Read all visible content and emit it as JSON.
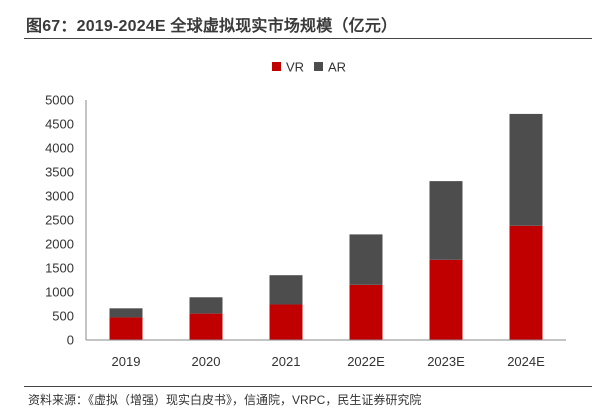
{
  "figure": {
    "title": "图67：2019-2024E 全球虚拟现实市场规模（亿元）",
    "source": "资料来源：《虚拟（增强）现实白皮书》，信通院，VRPC，民生证券研究院"
  },
  "chart_data": {
    "type": "bar",
    "stacked": true,
    "title": "",
    "xlabel": "",
    "ylabel": "",
    "categories": [
      "2019",
      "2020",
      "2021",
      "2022E",
      "2023E",
      "2024E"
    ],
    "series": [
      {
        "name": "VR",
        "color": "#c00000",
        "values": [
          470,
          550,
          740,
          1150,
          1670,
          2380
        ]
      },
      {
        "name": "AR",
        "color": "#4d4d4d",
        "values": [
          190,
          340,
          610,
          1050,
          1640,
          2330
        ]
      }
    ],
    "ylim": [
      0,
      5000
    ],
    "yticks": [
      0,
      500,
      1000,
      1500,
      2000,
      2500,
      3000,
      3500,
      4000,
      4500,
      5000
    ],
    "grid": false,
    "legend": "top-center"
  }
}
